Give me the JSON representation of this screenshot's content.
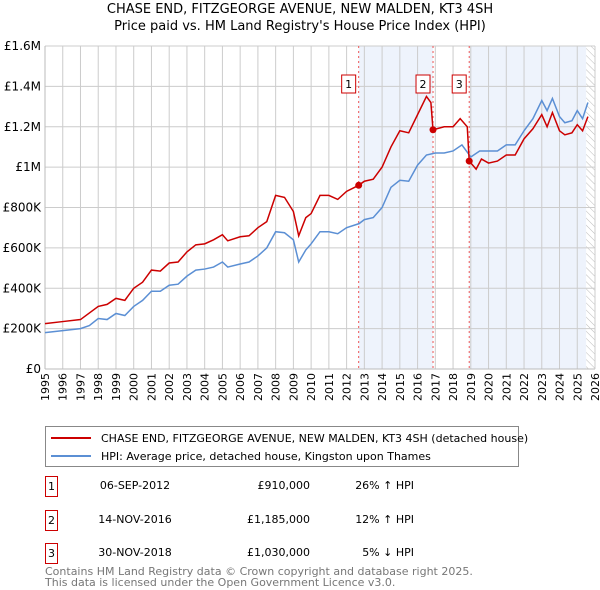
{
  "chart_data": {
    "type": "line",
    "title": "CHASE END, FITZGEORGE AVENUE, NEW MALDEN, KT3 4SH",
    "subtitle": "Price paid vs. HM Land Registry's House Price Index (HPI)",
    "xlim": [
      1995,
      2026
    ],
    "ylim": [
      0,
      1600000
    ],
    "x_ticks": [
      "1995",
      "1996",
      "1997",
      "1998",
      "1999",
      "2000",
      "2001",
      "2002",
      "2003",
      "2004",
      "2005",
      "2006",
      "2007",
      "2008",
      "2009",
      "2010",
      "2011",
      "2012",
      "2013",
      "2014",
      "2015",
      "2016",
      "2017",
      "2018",
      "2019",
      "2020",
      "2021",
      "2022",
      "2023",
      "2024",
      "2025",
      "2026"
    ],
    "y_ticks": [
      {
        "v": 0,
        "label": "£0"
      },
      {
        "v": 200000,
        "label": "£200K"
      },
      {
        "v": 400000,
        "label": "£400K"
      },
      {
        "v": 600000,
        "label": "£600K"
      },
      {
        "v": 800000,
        "label": "£800K"
      },
      {
        "v": 1000000,
        "label": "£1M"
      },
      {
        "v": 1200000,
        "label": "£1.2M"
      },
      {
        "v": 1400000,
        "label": "£1.4M"
      },
      {
        "v": 1600000,
        "label": "£1.6M"
      }
    ],
    "grid": true,
    "series": [
      {
        "name": "CHASE END, FITZGEORGE AVENUE, NEW MALDEN, KT3 4SH (detached house)",
        "color": "#cc0000",
        "x": [
          1995,
          1996,
          1997,
          1998,
          1998.5,
          1999,
          1999.5,
          2000,
          2000.5,
          2001,
          2001.5,
          2002,
          2002.5,
          2003,
          2003.5,
          2004,
          2004.5,
          2005,
          2005.3,
          2006,
          2006.5,
          2007,
          2007.5,
          2008,
          2008.5,
          2009,
          2009.3,
          2009.7,
          2010,
          2010.5,
          2011,
          2011.5,
          2012,
          2012.68,
          2013,
          2013.5,
          2014,
          2014.5,
          2015,
          2015.5,
          2016,
          2016.5,
          2016.75,
          2016.87,
          2017.5,
          2018,
          2018.4,
          2018.8,
          2018.91,
          2019.3,
          2019.6,
          2020,
          2020.5,
          2021,
          2021.5,
          2022,
          2022.5,
          2023,
          2023.3,
          2023.6,
          2024,
          2024.3,
          2024.7,
          2025,
          2025.3,
          2025.6
        ],
        "y": [
          225000,
          235000,
          245000,
          310000,
          320000,
          350000,
          340000,
          400000,
          430000,
          490000,
          485000,
          525000,
          530000,
          580000,
          615000,
          620000,
          640000,
          665000,
          635000,
          655000,
          660000,
          700000,
          730000,
          860000,
          850000,
          780000,
          660000,
          750000,
          770000,
          860000,
          860000,
          840000,
          880000,
          910000,
          930000,
          940000,
          1000000,
          1100000,
          1180000,
          1170000,
          1260000,
          1350000,
          1320000,
          1185000,
          1200000,
          1200000,
          1240000,
          1200000,
          1030000,
          990000,
          1040000,
          1020000,
          1030000,
          1060000,
          1060000,
          1140000,
          1190000,
          1260000,
          1200000,
          1270000,
          1180000,
          1160000,
          1170000,
          1210000,
          1180000,
          1250000
        ]
      },
      {
        "name": "HPI: Average price, detached house, Kingston upon Thames",
        "color": "#5b8fd4",
        "x": [
          1995,
          1996,
          1997,
          1997.5,
          1998,
          1998.5,
          1999,
          1999.5,
          2000,
          2000.5,
          2001,
          2001.5,
          2002,
          2002.5,
          2003,
          2003.5,
          2004,
          2004.5,
          2005,
          2005.3,
          2006,
          2006.5,
          2007,
          2007.5,
          2008,
          2008.5,
          2009,
          2009.3,
          2009.7,
          2010,
          2010.5,
          2011,
          2011.5,
          2012,
          2012.7,
          2013,
          2013.5,
          2014,
          2014.5,
          2015,
          2015.5,
          2016,
          2016.5,
          2017,
          2017.5,
          2018,
          2018.5,
          2019,
          2019.5,
          2020,
          2020.5,
          2021,
          2021.5,
          2022,
          2022.5,
          2023,
          2023.3,
          2023.6,
          2024,
          2024.3,
          2024.7,
          2025,
          2025.3,
          2025.6
        ],
        "y": [
          180000,
          190000,
          200000,
          215000,
          250000,
          245000,
          275000,
          265000,
          310000,
          340000,
          385000,
          385000,
          415000,
          420000,
          460000,
          490000,
          495000,
          505000,
          530000,
          505000,
          520000,
          530000,
          560000,
          600000,
          680000,
          675000,
          640000,
          530000,
          590000,
          620000,
          680000,
          680000,
          670000,
          700000,
          720000,
          740000,
          750000,
          800000,
          900000,
          935000,
          930000,
          1010000,
          1060000,
          1070000,
          1070000,
          1080000,
          1110000,
          1050000,
          1080000,
          1080000,
          1080000,
          1110000,
          1110000,
          1180000,
          1240000,
          1330000,
          1280000,
          1340000,
          1250000,
          1220000,
          1230000,
          1280000,
          1240000,
          1320000
        ]
      }
    ],
    "sales": [
      {
        "id": "1",
        "x": 2012.68,
        "y": 910000,
        "date": "06-SEP-2012",
        "price": "£910,000",
        "hpi": "26% ↑ HPI"
      },
      {
        "id": "2",
        "x": 2016.87,
        "y": 1185000,
        "date": "14-NOV-2016",
        "price": "£1,185,000",
        "hpi": "12% ↑ HPI"
      },
      {
        "id": "3",
        "x": 2018.91,
        "y": 1030000,
        "date": "30-NOV-2018",
        "price": "£1,030,000",
        "hpi": "5% ↓ HPI"
      }
    ],
    "data_end": 2025.5,
    "legend": {
      "placement": "below"
    }
  },
  "footer": [
    "Contains HM Land Registry data © Crown copyright and database right 2025.",
    "This data is licensed under the Open Government Licence v3.0."
  ]
}
